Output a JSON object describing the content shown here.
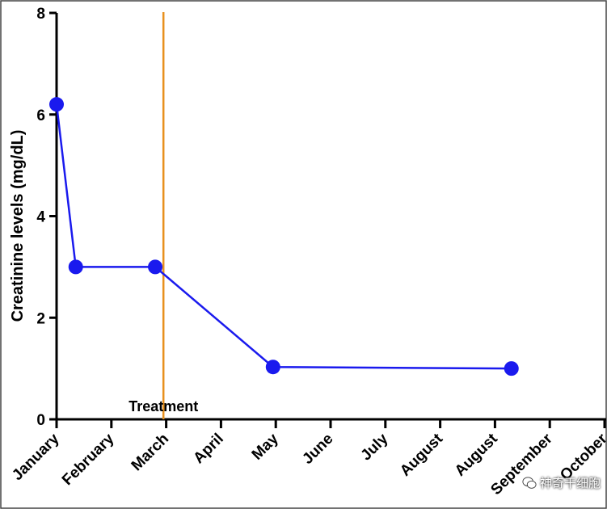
{
  "chart_data": {
    "type": "line",
    "ylabel": "Creatinine levels (mg/dL)",
    "xlabel": "",
    "ylim": [
      0,
      8
    ],
    "yticks": [
      0,
      2,
      4,
      6,
      8
    ],
    "categories": [
      "January",
      "February",
      "March",
      "April",
      "May",
      "June",
      "July",
      "August",
      "August",
      "September",
      "October"
    ],
    "series": [
      {
        "color": "#1a1aee",
        "points": [
          {
            "x": 0.0,
            "y": 6.2
          },
          {
            "x": 0.35,
            "y": 3.0
          },
          {
            "x": 1.8,
            "y": 3.0
          },
          {
            "x": 3.95,
            "y": 1.03
          },
          {
            "x": 8.3,
            "y": 1.0
          }
        ]
      }
    ],
    "annotations": [
      {
        "type": "vline",
        "x": 1.95,
        "color": "#e8911e",
        "label": "Treatment"
      }
    ]
  },
  "watermark": {
    "text": "神奇干细胞"
  }
}
